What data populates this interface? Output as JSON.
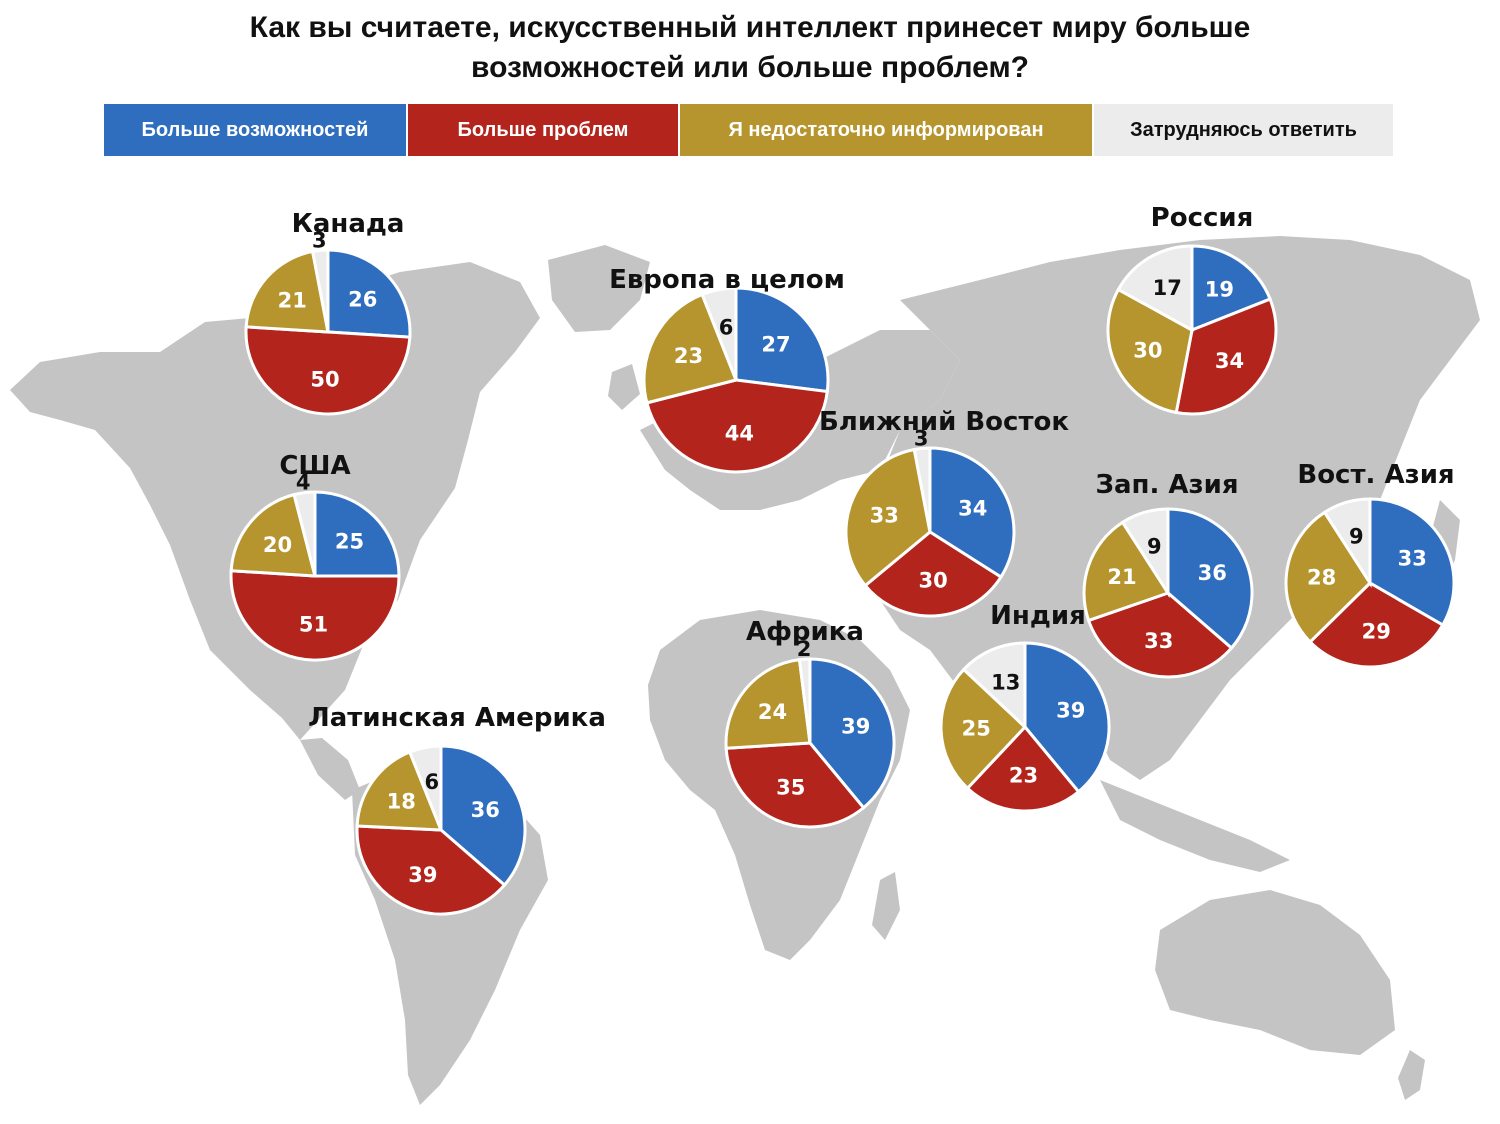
{
  "chart_data": {
    "type": "pie",
    "title": "Как вы считаете, искусственный интеллект принесет миру больше возможностей или больше проблем?",
    "legend": {
      "placement": "top",
      "entries": [
        {
          "label": "Больше возможностей",
          "color": "#2f6ebf",
          "text_color": "#ffffff"
        },
        {
          "label": "Больше проблем",
          "color": "#b2241c",
          "text_color": "#ffffff"
        },
        {
          "label": "Я недостаточно информирован",
          "color": "#b6952f",
          "text_color": "#ffffff"
        },
        {
          "label": "Затрудняюсь ответить",
          "color": "#ececec",
          "text_color": "#111111"
        }
      ]
    },
    "map_color": "#c4c4c4",
    "pies": [
      {
        "name": "Канада",
        "values": [
          26,
          50,
          21,
          3
        ]
      },
      {
        "name": "США",
        "values": [
          25,
          51,
          20,
          4
        ]
      },
      {
        "name": "Латинская Америка",
        "values": [
          36,
          39,
          18,
          6
        ]
      },
      {
        "name": "Европа в целом",
        "values": [
          27,
          44,
          23,
          6
        ]
      },
      {
        "name": "Ближний Восток",
        "values": [
          34,
          30,
          33,
          3
        ]
      },
      {
        "name": "Африка",
        "values": [
          39,
          35,
          24,
          2
        ]
      },
      {
        "name": "Индия",
        "values": [
          39,
          23,
          25,
          13
        ]
      },
      {
        "name": "Россия",
        "values": [
          19,
          34,
          30,
          17
        ]
      },
      {
        "name": "Зап. Азия",
        "values": [
          36,
          33,
          21,
          9
        ]
      },
      {
        "name": "Вост. Азия",
        "values": [
          33,
          29,
          28,
          9
        ]
      }
    ]
  }
}
